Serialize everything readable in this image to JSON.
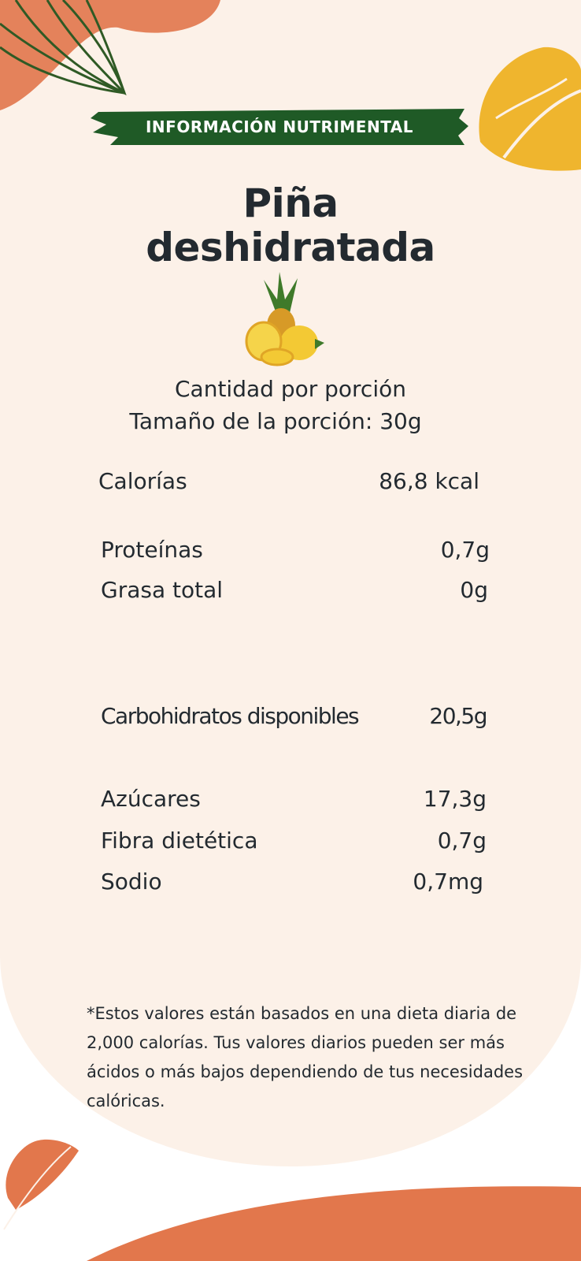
{
  "banner": {
    "label": "INFORMACIÓN NUTRIMENTAL",
    "color": "#1f5a26"
  },
  "title": {
    "line1": "Piña",
    "line2": "deshidratada"
  },
  "image": {
    "icon": "pineapple-icon"
  },
  "serving": {
    "heading": "Cantidad por porción",
    "size_label": "Tamaño de la porción:",
    "size_value": "30g"
  },
  "nutrients": [
    {
      "name": "Calorías",
      "value": "86,8 kcal"
    },
    {
      "name": "Proteínas",
      "value": "0,7g"
    },
    {
      "name": "Grasa total",
      "value": "0g"
    },
    {
      "name": "Carbohidratos disponibles",
      "value": "20,5g"
    },
    {
      "name": "Azúcares",
      "value": "17,3g"
    },
    {
      "name": "Fibra dietética",
      "value": "0,7g"
    },
    {
      "name": "Sodio",
      "value": "0,7mg"
    }
  ],
  "footnote": "*Estos valores están basados en una dieta diaria de 2,000 calorías. Tus valores diarios pueden ser más ácidos o más bajos dependiendo de tus necesidades calóricas.",
  "colors": {
    "background": "#fcf1e8",
    "orange": "#e2774c",
    "yellow": "#efb52e",
    "green": "#1f5a26",
    "text": "#232a30"
  }
}
